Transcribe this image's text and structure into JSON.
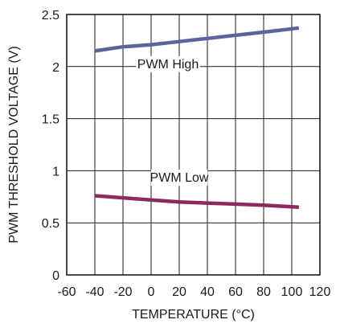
{
  "chart_data": {
    "type": "line",
    "xlabel": "TEMPERATURE (°C)",
    "ylabel": "PWM THRESHOLD VOLTAGE (V)",
    "xlim": [
      -60,
      120
    ],
    "ylim": [
      0,
      2.5
    ],
    "x_ticks": [
      -60,
      -40,
      -20,
      0,
      20,
      40,
      60,
      80,
      100,
      120
    ],
    "x_tick_labels": [
      "-60",
      "-40",
      "-20",
      "0",
      "20",
      "40",
      "60",
      "80",
      "100",
      "120"
    ],
    "y_ticks": [
      0,
      0.5,
      1,
      1.5,
      2,
      2.5
    ],
    "y_tick_labels": [
      "0",
      "0.5",
      "1",
      "1.5",
      "2",
      "2.5"
    ],
    "grid": true,
    "series": [
      {
        "name": "PWM High",
        "color": "#5b6499",
        "x": [
          -40,
          -20,
          0,
          20,
          40,
          60,
          80,
          105
        ],
        "y": [
          2.15,
          2.19,
          2.21,
          2.24,
          2.27,
          2.3,
          2.33,
          2.37
        ]
      },
      {
        "name": "PWM Low",
        "color": "#8c2a5e",
        "x": [
          -40,
          -20,
          0,
          20,
          40,
          60,
          80,
          105
        ],
        "y": [
          0.76,
          0.74,
          0.72,
          0.7,
          0.69,
          0.68,
          0.67,
          0.65
        ]
      }
    ],
    "annotations": [
      {
        "text": "PWM High",
        "x": 12,
        "y": 2.0,
        "series": 0
      },
      {
        "text": "PWM Low",
        "x": 20,
        "y": 0.91,
        "series": 1
      }
    ]
  }
}
